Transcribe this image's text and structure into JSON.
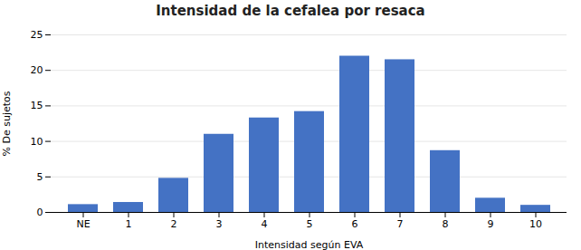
{
  "chart_data": {
    "type": "bar",
    "title": "Intensidad de la cefalea por resaca",
    "xlabel": "Intensidad según EVA",
    "ylabel": "% De sujetos",
    "categories": [
      "NE",
      "1",
      "2",
      "3",
      "4",
      "5",
      "6",
      "7",
      "8",
      "9",
      "10"
    ],
    "values": [
      1.1,
      1.4,
      4.8,
      11.0,
      13.3,
      14.2,
      22.0,
      21.5,
      8.7,
      2.0,
      1.0
    ],
    "color": "#4472C4",
    "ylim": [
      0,
      25
    ],
    "yticks": [
      0,
      5,
      10,
      15,
      20,
      25
    ],
    "grid": true
  }
}
